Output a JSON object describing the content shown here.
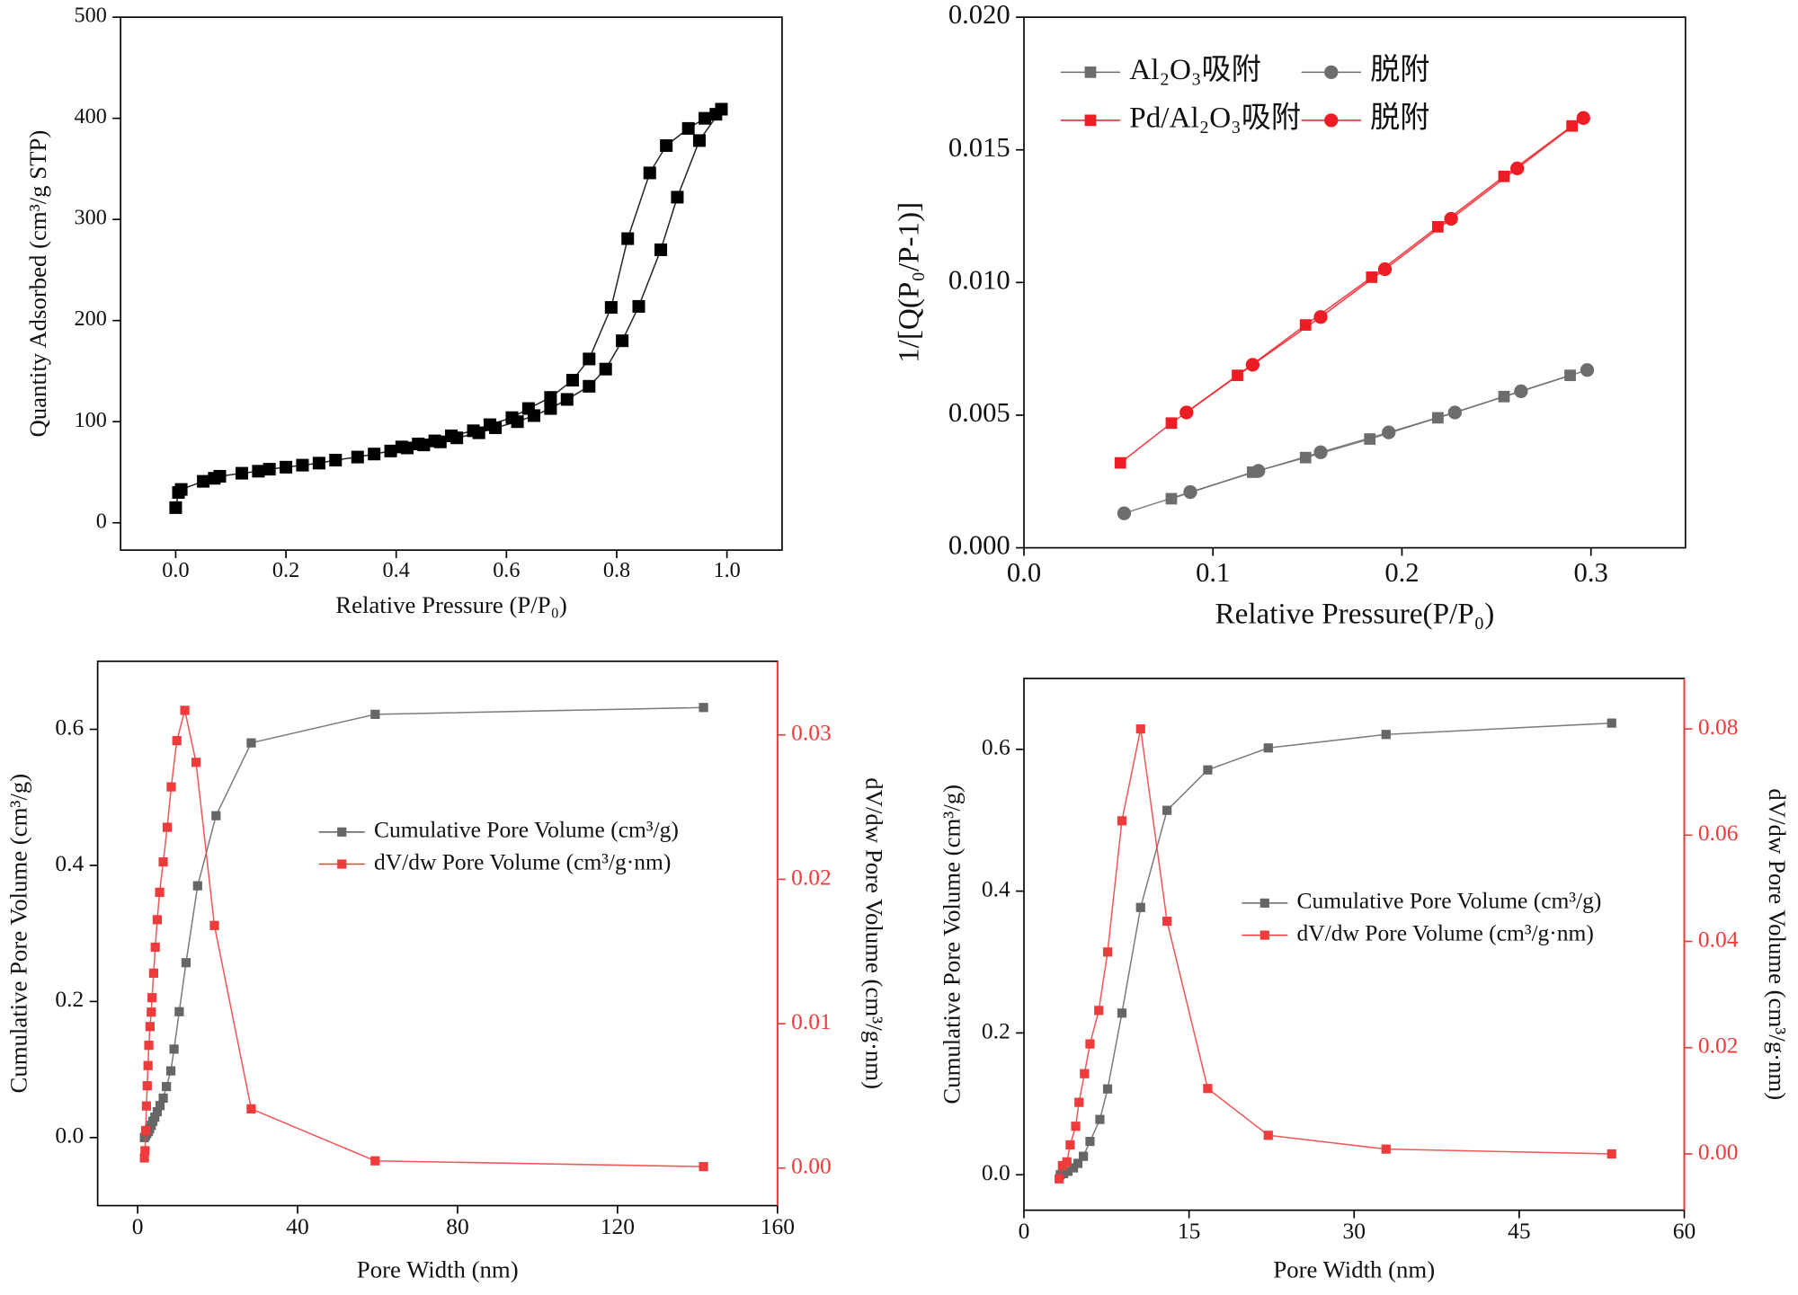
{
  "chart_data": [
    {
      "type": "line",
      "xlabel": "Relative Pressure (P/P₀)",
      "ylabel": "Quantity Adsorbed (cm³/g STP)",
      "xlim": [
        -0.1,
        1.1
      ],
      "ylim": [
        -27,
        500
      ],
      "xticks": [
        {
          "value": 0,
          "label": "0.0"
        },
        0.2,
        0.4,
        0.6,
        0.8,
        {
          "value": 1,
          "label": "1.0"
        }
      ],
      "yticks": [
        0,
        100,
        200,
        300,
        400,
        500
      ],
      "series": [
        {
          "color": "#000000",
          "marker": "square",
          "x": [
            0.0,
            0.005,
            0.01,
            0.05,
            0.07,
            0.08,
            0.12,
            0.15,
            0.17,
            0.2,
            0.23,
            0.26,
            0.29,
            0.33,
            0.36,
            0.39,
            0.42,
            0.45,
            0.48,
            0.51,
            0.55,
            0.58,
            0.62,
            0.65,
            0.68,
            0.71,
            0.75,
            0.78,
            0.81,
            0.84,
            0.88,
            0.91,
            0.95,
            0.99
          ],
          "values": [
            15,
            30,
            33,
            41,
            44,
            46,
            49,
            51,
            53,
            55,
            57,
            59,
            62,
            65,
            68,
            71,
            74,
            77,
            80,
            84,
            89,
            94,
            100,
            106,
            113,
            122,
            135,
            152,
            180,
            214,
            270,
            322,
            378,
            409
          ]
        },
        {
          "color": "#000000",
          "marker": "square",
          "x": [
            0.98,
            0.96,
            0.93,
            0.89,
            0.86,
            0.82,
            0.79,
            0.75,
            0.72,
            0.68,
            0.64,
            0.61,
            0.57,
            0.54,
            0.5,
            0.47,
            0.44,
            0.41
          ],
          "values": [
            404,
            400,
            390,
            373,
            346,
            281,
            213,
            162,
            141,
            124,
            113,
            104,
            97,
            91,
            86,
            81,
            78,
            75
          ]
        }
      ]
    },
    {
      "type": "line",
      "xlabel": "Relative Pressure(P/P₀)",
      "ylabel": "1/[Q(P₀/P-1)]",
      "xlim": [
        0,
        0.35
      ],
      "ylim": [
        0,
        0.02
      ],
      "xticks": [
        {
          "value": 0,
          "label": "0.0"
        },
        0.1,
        0.2,
        0.3
      ],
      "yticks": [
        {
          "value": 0,
          "label": "0.000"
        },
        {
          "value": 0.005,
          "label": "0.005"
        },
        {
          "value": 0.01,
          "label": "0.010"
        },
        {
          "value": 0.015,
          "label": "0.015"
        },
        {
          "value": 0.02,
          "label": "0.020"
        }
      ],
      "legend": "upper left",
      "series": [
        {
          "name": "Al₂O₃吸附",
          "color": "#6d6d6d",
          "marker": "square",
          "x": [
            0.078,
            0.121,
            0.149,
            0.183,
            0.219,
            0.254,
            0.289
          ],
          "values": [
            0.00185,
            0.00285,
            0.0034,
            0.0041,
            0.0049,
            0.0057,
            0.0065
          ]
        },
        {
          "name": "脱附",
          "color": "#6d6d6d",
          "marker": "circle",
          "x": [
            0.053,
            0.088,
            0.124,
            0.157,
            0.193,
            0.228,
            0.263,
            0.298
          ],
          "values": [
            0.0013,
            0.0021,
            0.0029,
            0.0036,
            0.00435,
            0.0051,
            0.0059,
            0.0067
          ]
        },
        {
          "name": "Pd/Al₂O₃吸附",
          "color": "#ee1c25",
          "marker": "square",
          "x": [
            0.051,
            0.078,
            0.113,
            0.149,
            0.184,
            0.219,
            0.254,
            0.29
          ],
          "values": [
            0.0032,
            0.0047,
            0.0065,
            0.0084,
            0.0102,
            0.0121,
            0.014,
            0.0159
          ]
        },
        {
          "name": "脱附",
          "color": "#ee1c25",
          "marker": "circle",
          "x": [
            0.086,
            0.121,
            0.157,
            0.191,
            0.226,
            0.261,
            0.296
          ],
          "values": [
            0.0051,
            0.0069,
            0.0087,
            0.0105,
            0.0124,
            0.0143,
            0.0162
          ]
        }
      ]
    },
    {
      "type": "line",
      "xlabel": "Pore Width (nm)",
      "ylabel": "Cumulative Pore Volume (cm³/g)",
      "y2label": "dV/dw Pore Volume (cm³/g·nm)",
      "xlim": [
        -10,
        160
      ],
      "ylim": [
        -0.1,
        0.7
      ],
      "y2lim": [
        -0.0026,
        0.0351
      ],
      "y2color": "#ef3b3b",
      "xticks": [
        0,
        40,
        80,
        120,
        160
      ],
      "yticks": [
        {
          "value": 0,
          "label": "0.0"
        },
        0.2,
        0.4,
        0.6
      ],
      "y2ticks": [
        {
          "value": 0,
          "label": "0.00"
        },
        {
          "value": 0.01,
          "label": "0.01"
        },
        {
          "value": 0.02,
          "label": "0.02"
        },
        {
          "value": 0.03,
          "label": "0.03"
        }
      ],
      "legend": "center right",
      "series": [
        {
          "name": "Cumulative Pore Volume (cm³/g)",
          "color": "#666666",
          "marker": "square",
          "x": [
            1.7,
            2,
            2.3,
            2.7,
            3,
            3.4,
            3.8,
            4.3,
            4.9,
            5.6,
            6.4,
            7.2,
            8.3,
            9.1,
            10.4,
            12.1,
            15,
            19.6,
            28.4,
            59.4,
            141.5
          ],
          "values": [
            0.0,
            0.003,
            0.006,
            0.009,
            0.013,
            0.018,
            0.024,
            0.03,
            0.038,
            0.047,
            0.058,
            0.075,
            0.098,
            0.13,
            0.185,
            0.257,
            0.37,
            0.473,
            0.58,
            0.622,
            0.632
          ]
        },
        {
          "name": "dV/dw Pore Volume (cm³/g·nm)",
          "color": "#ef3b3b",
          "marker": "square",
          "axis": "y2",
          "x": [
            1.7,
            1.85,
            2,
            2.2,
            2.4,
            2.6,
            2.8,
            3.1,
            3.4,
            3.6,
            4,
            4.4,
            4.9,
            5.5,
            6.4,
            7.4,
            8.4,
            9.8,
            11.8,
            14.6,
            19.2,
            28.4,
            59.4,
            141.5
          ],
          "values": [
            0.0007,
            0.0012,
            0.0026,
            0.0043,
            0.0057,
            0.0071,
            0.0085,
            0.0098,
            0.0108,
            0.0118,
            0.0135,
            0.0153,
            0.0172,
            0.0191,
            0.0212,
            0.0236,
            0.0264,
            0.0296,
            0.0317,
            0.0281,
            0.0168,
            0.0041,
            0.0005,
            0.0001
          ]
        }
      ]
    },
    {
      "type": "line",
      "xlabel": "Pore Width (nm)",
      "ylabel": "Cumulative Pore Volume (cm³/g)",
      "y2label": "dV/dw Pore Volume (cm³/g·nm)",
      "xlim": [
        0,
        60
      ],
      "ylim": [
        -0.05,
        0.7
      ],
      "y2lim": [
        -0.0106,
        0.0895
      ],
      "y2color": "#ef3b3b",
      "xticks": [
        0,
        15,
        30,
        45,
        60
      ],
      "yticks": [
        {
          "value": 0,
          "label": "0.0"
        },
        0.2,
        0.4,
        0.6
      ],
      "y2ticks": [
        {
          "value": 0,
          "label": "0.00"
        },
        {
          "value": 0.02,
          "label": "0.02"
        },
        {
          "value": 0.04,
          "label": "0.04"
        },
        {
          "value": 0.06,
          "label": "0.06"
        },
        {
          "value": 0.08,
          "label": "0.08"
        }
      ],
      "legend": "center right",
      "series": [
        {
          "name": "Cumulative Pore Volume (cm³/g)",
          "color": "#666666",
          "marker": "square",
          "x": [
            3.3,
            3.6,
            4.0,
            4.5,
            4.9,
            5.4,
            6.0,
            6.9,
            7.6,
            8.9,
            10.6,
            13.0,
            16.7,
            22.2,
            32.9,
            53.4
          ],
          "values": [
            0.0,
            0.0016,
            0.0049,
            0.0097,
            0.016,
            0.026,
            0.047,
            0.078,
            0.121,
            0.228,
            0.377,
            0.514,
            0.571,
            0.602,
            0.621,
            0.637
          ]
        },
        {
          "name": "dV/dw Pore Volume (cm³/g·nm)",
          "color": "#ef3b3b",
          "marker": "square",
          "axis": "y2",
          "x": [
            3.2,
            3.5,
            3.9,
            4.2,
            4.7,
            5.0,
            5.5,
            6.0,
            6.8,
            7.6,
            8.9,
            10.6,
            13.0,
            16.7,
            22.2,
            32.9,
            53.4
          ],
          "values": [
            -0.0047,
            -0.0022,
            -0.0015,
            0.0017,
            0.0052,
            0.0097,
            0.0151,
            0.0207,
            0.027,
            0.038,
            0.0627,
            0.08,
            0.0438,
            0.0123,
            0.0035,
            0.0009,
            0
          ]
        }
      ]
    }
  ]
}
